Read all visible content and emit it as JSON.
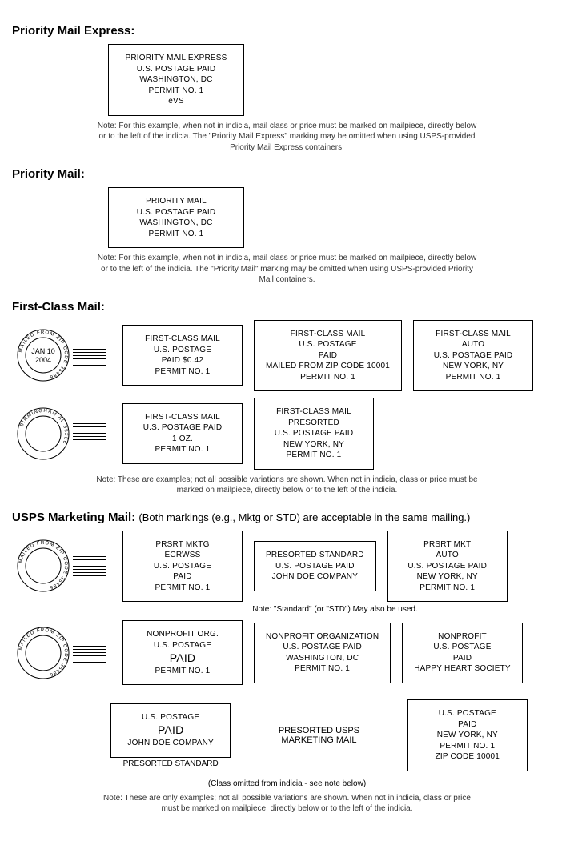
{
  "colors": {
    "border": "#000000",
    "text": "#000000",
    "bg": "#ffffff"
  },
  "sections": {
    "pme": {
      "title": "Priority Mail Express:",
      "box": [
        "PRIORITY MAIL EXPRESS",
        "U.S. POSTAGE PAID",
        "WASHINGTON, DC",
        "PERMIT NO. 1",
        "eVS"
      ],
      "note": "Note: For this example, when not in indicia, mail class or price must be marked on mailpiece, directly below or to the left of the indicia. The \"Priority Mail Express\" marking may be omitted when using USPS-provided Priority Mail Express containers."
    },
    "pm": {
      "title": "Priority Mail:",
      "box": [
        "PRIORITY MAIL",
        "U.S. POSTAGE PAID",
        "WASHINGTON, DC",
        "PERMIT NO. 1"
      ],
      "note": "Note: For this example, when not in indicia, mail class or price must be marked on mailpiece, directly below or to the left of the indicia. The \"Priority Mail\" marking may be omitted when using USPS-provided Priority Mail containers."
    },
    "fcm": {
      "title": "First-Class Mail:",
      "postmark1": {
        "top_arc": "MAILED FROM ZIP CODE 35486",
        "center": [
          "JAN 10",
          "2004"
        ]
      },
      "postmark2": {
        "top_arc": "BIRMINGHAM AL 35286",
        "center": []
      },
      "row1": [
        [
          "FIRST-CLASS MAIL",
          "U.S. POSTAGE",
          "PAID $0.42",
          "PERMIT NO. 1"
        ],
        [
          "FIRST-CLASS MAIL",
          "U.S. POSTAGE",
          "PAID",
          "MAILED FROM ZIP CODE 10001",
          "PERMIT NO. 1"
        ],
        [
          "FIRST-CLASS MAIL",
          "AUTO",
          "U.S. POSTAGE PAID",
          "NEW YORK, NY",
          "PERMIT NO. 1"
        ]
      ],
      "row2": [
        [
          "FIRST-CLASS MAIL",
          "U.S. POSTAGE PAID",
          "1 OZ.",
          "PERMIT NO. 1"
        ],
        [
          "FIRST-CLASS MAIL",
          "PRESORTED",
          "U.S. POSTAGE PAID",
          "NEW YORK, NY",
          "PERMIT NO. 1"
        ]
      ],
      "note": "Note: These are examples; not all possible variations are shown. When not in indicia, class or price must be marked on mailpiece, directly below or to the left of the indicia."
    },
    "mktg": {
      "title": "USPS Marketing Mail:",
      "subtitle": "(Both markings (e.g., Mktg or STD) are acceptable in the same mailing.)",
      "postmark1": {
        "top_arc": "MAILED FROM ZIP CODE 35486"
      },
      "postmark2": {
        "top_arc": "MAILED FROM ZIP CODE 35486"
      },
      "row1": [
        [
          "PRSRT MKTG",
          "ECRWSS",
          "U.S. POSTAGE",
          "PAID",
          "PERMIT NO. 1"
        ],
        [
          "PRESORTED STANDARD",
          "U.S. POSTAGE PAID",
          "JOHN DOE COMPANY"
        ],
        [
          "PRSRT MKT",
          "AUTO",
          "U.S. POSTAGE PAID",
          "NEW YORK, NY",
          "PERMIT NO. 1"
        ]
      ],
      "row1_note": "Note: \"Standard\" (or \"STD\") May also be used.",
      "row2": [
        [
          "NONPROFIT ORG.",
          "U.S. POSTAGE",
          "PAID",
          "PERMIT NO. 1"
        ],
        [
          "NONPROFIT ORGANIZATION",
          "U.S. POSTAGE PAID",
          "WASHINGTON, DC",
          "PERMIT NO. 1"
        ],
        [
          "NONPROFIT",
          "U.S. POSTAGE",
          "PAID",
          "HAPPY HEART SOCIETY"
        ]
      ],
      "row3": {
        "left_box": [
          "U.S. POSTAGE",
          "PAID",
          "JOHN DOE COMPANY"
        ],
        "left_caption": "PRESORTED STANDARD",
        "mid_text": [
          "PRESORTED USPS",
          "MARKETING MAIL"
        ],
        "right_box": [
          "U.S. POSTAGE",
          "PAID",
          "NEW YORK, NY",
          "PERMIT NO. 1",
          "ZIP CODE 10001"
        ]
      },
      "row3_caption": "(Class omitted from indicia - see note below)",
      "note": "Note: These are only examples; not all possible variations are shown. When not in indicia, class or price must be marked on mailpiece, directly below or to the left of the indicia."
    }
  }
}
